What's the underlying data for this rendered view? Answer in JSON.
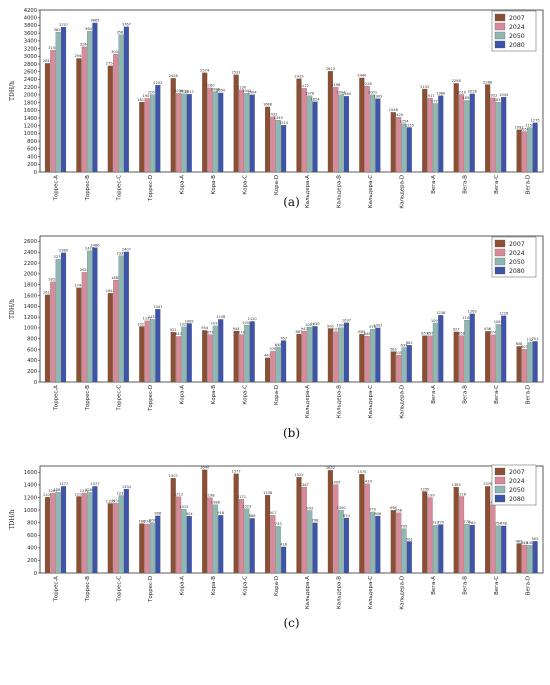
{
  "colors": {
    "2007": "#8c4f33",
    "2024": "#d98a9a",
    "2050": "#8fb8b3",
    "2080": "#3d54a8"
  },
  "chart_data": [
    {
      "panel_label": "(a)",
      "type": "bar",
      "ylabel": "TDH/h",
      "ylim": [
        0,
        4200
      ],
      "yticks": [
        0,
        200,
        400,
        600,
        800,
        1000,
        1200,
        1400,
        1600,
        1800,
        2000,
        2200,
        2400,
        2600,
        2800,
        3000,
        3200,
        3400,
        3600,
        3800,
        4000,
        4200
      ],
      "categories": [
        "Торрес-A",
        "Торрес-B",
        "Торрес-C",
        "Торрес-D",
        "Кора-A",
        "Кора-B",
        "Кора-C",
        "Кора-D",
        "Кальдера-A",
        "Кальдера-B",
        "Кальдера-C",
        "Кальдера-D",
        "Вега-A",
        "Вега-B",
        "Вега-C",
        "Вега-D"
      ],
      "legend": [
        "2007",
        "2024",
        "2050",
        "2080"
      ],
      "series": [
        {
          "name": "2007",
          "values": [
            2816,
            2944,
            2754,
            1813,
            2428,
            2574,
            2521,
            1688,
            2419,
            2613,
            2440,
            1548,
            2152,
            2298,
            2268,
            1097
          ]
        },
        {
          "name": "2024",
          "values": [
            3158,
            3248,
            3058,
            1907,
            2038,
            2180,
            2130,
            1432,
            2172,
            2198,
            2226,
            1420,
            1917,
            2010,
            1922,
            1050
          ]
        },
        {
          "name": "2050",
          "values": [
            3625,
            3647,
            3561,
            2007,
            2033,
            2086,
            2043,
            1345,
            1978,
            2004,
            2001,
            1254,
            1777,
            1856,
            1810,
            1152
          ]
        },
        {
          "name": "2080",
          "values": [
            3757,
            3865,
            3767,
            2252,
            2017,
            2050,
            2004,
            1215,
            1824,
            1964,
            1902,
            1155,
            1980,
            2028,
            1943,
            1275
          ]
        }
      ]
    },
    {
      "panel_label": "(b)",
      "type": "bar",
      "ylabel": "TDH/h",
      "ylim": [
        0,
        2700
      ],
      "yticks": [
        0,
        200,
        400,
        600,
        800,
        1000,
        1200,
        1400,
        1600,
        1800,
        2000,
        2200,
        2400,
        2600
      ],
      "categories": [
        "Торрес-A",
        "Торрес-B",
        "Торрес-C",
        "Торрес-D",
        "Кора-A",
        "Кора-B",
        "Кора-C",
        "Кора-D",
        "Кальдера-A",
        "Кальдера-B",
        "Кальдера-C",
        "Кальдера-D",
        "Вега-A",
        "Вега-B",
        "Вега-C",
        "Вега-D"
      ],
      "legend": [
        "2007",
        "2024",
        "2050",
        "2080"
      ],
      "series": [
        {
          "name": "2007",
          "values": [
            1612,
            1744,
            1643,
            1027,
            921,
            954,
            944,
            447,
            887,
            990,
            885,
            563,
            857,
            927,
            936,
            658
          ]
        },
        {
          "name": "2024",
          "values": [
            1852,
            2028,
            1885,
            1131,
            843,
            877,
            878,
            570,
            943,
            933,
            848,
            500,
            855,
            858,
            874,
            607
          ]
        },
        {
          "name": "2050",
          "values": [
            2270,
            2428,
            2336,
            1157,
            1022,
            1037,
            1054,
            648,
            1017,
            1006,
            979,
            637,
            1091,
            1145,
            1065,
            732
          ]
        },
        {
          "name": "2080",
          "values": [
            2389,
            2486,
            2407,
            1347,
            1082,
            1158,
            1120,
            767,
            1030,
            1097,
            1002,
            681,
            1236,
            1262,
            1226,
            751
          ]
        }
      ]
    },
    {
      "panel_label": "(c)",
      "type": "bar",
      "ylabel": "TDH/h",
      "ylim": [
        0,
        1700
      ],
      "yticks": [
        0,
        200,
        400,
        600,
        800,
        1000,
        1200,
        1400,
        1600
      ],
      "categories": [
        "Торрес-A",
        "Торрес-B",
        "Торрес-C",
        "Торрес-D",
        "Кора-A",
        "Кора-B",
        "Кора-C",
        "Кора-D",
        "Кальдера-A",
        "Кальдера-B",
        "Кальдера-C",
        "Кальдера-D",
        "Вега-A",
        "Вега-B",
        "Вега-C",
        "Вега-D"
      ],
      "legend": [
        "2007",
        "2024",
        "2050",
        "2080"
      ],
      "series": [
        {
          "name": "2007",
          "values": [
            1204,
            1216,
            1105,
            786,
            1507,
            1640,
            1577,
            1238,
            1522,
            1632,
            1570,
            998,
            1295,
            1365,
            1376,
            469
          ]
        },
        {
          "name": "2024",
          "values": [
            1267,
            1271,
            1110,
            779,
            1212,
            1198,
            1171,
            917,
            1367,
            1405,
            1419,
            958,
            1199,
            1216,
            1085,
            445
          ]
        },
        {
          "name": "2050",
          "values": [
            1284,
            1280,
            1231,
            800,
            1015,
            1086,
            1023,
            743,
            993,
            1000,
            970,
            705,
            757,
            778,
            754,
            440
          ]
        },
        {
          "name": "2080",
          "values": [
            1377,
            1377,
            1334,
            908,
            904,
            918,
            868,
            416,
            798,
            874,
            906,
            501,
            770,
            762,
            748,
            505
          ]
        }
      ]
    }
  ]
}
